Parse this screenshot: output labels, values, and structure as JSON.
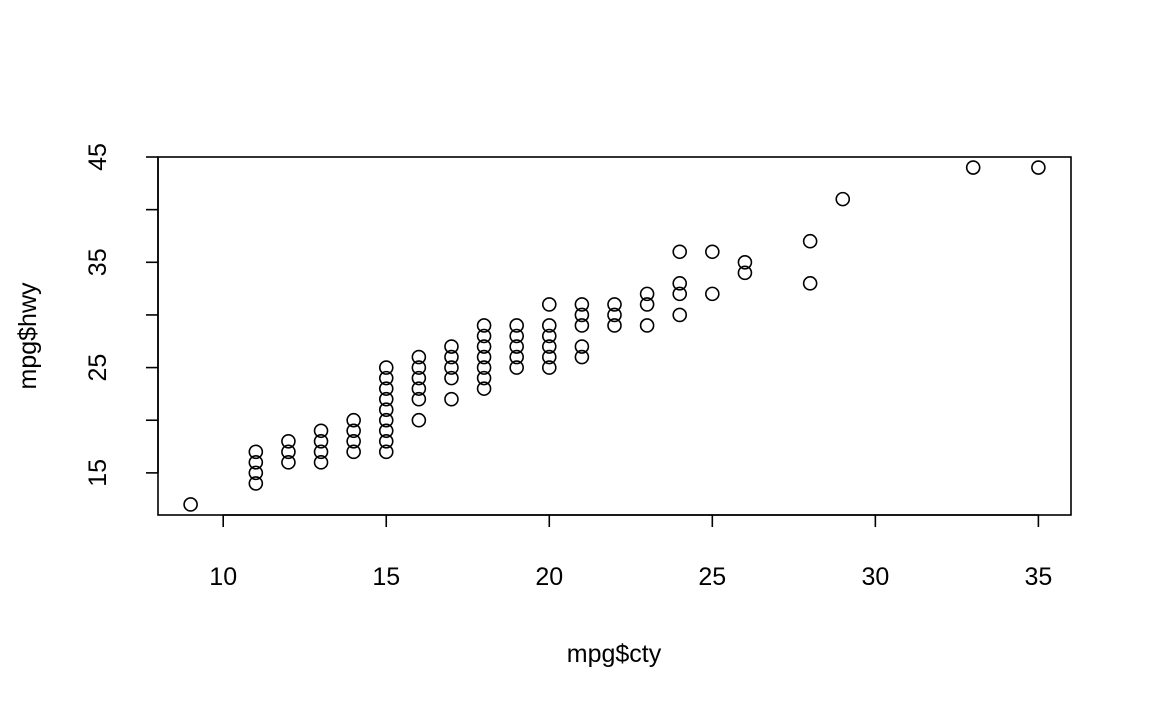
{
  "chart_data": {
    "type": "scatter",
    "title": "",
    "xlabel": "mpg$cty",
    "ylabel": "mpg$hwy",
    "xlim": [
      8,
      36
    ],
    "ylim": [
      11,
      45
    ],
    "x_ticks": [
      10,
      15,
      20,
      25,
      30,
      35
    ],
    "y_ticks": [
      15,
      20,
      25,
      30,
      35,
      40,
      45
    ],
    "y_tick_labels": [
      "15",
      "",
      "25",
      "",
      "35",
      "",
      "45"
    ],
    "grid": false,
    "legend": "none",
    "marker": "open-circle",
    "color": "#000000",
    "points": [
      [
        9,
        12
      ],
      [
        11,
        14
      ],
      [
        11,
        15
      ],
      [
        11,
        16
      ],
      [
        11,
        17
      ],
      [
        12,
        16
      ],
      [
        12,
        17
      ],
      [
        12,
        18
      ],
      [
        13,
        16
      ],
      [
        13,
        17
      ],
      [
        13,
        18
      ],
      [
        13,
        19
      ],
      [
        14,
        17
      ],
      [
        14,
        18
      ],
      [
        14,
        19
      ],
      [
        14,
        20
      ],
      [
        15,
        17
      ],
      [
        15,
        18
      ],
      [
        15,
        19
      ],
      [
        15,
        20
      ],
      [
        15,
        21
      ],
      [
        15,
        22
      ],
      [
        15,
        23
      ],
      [
        15,
        24
      ],
      [
        15,
        25
      ],
      [
        16,
        20
      ],
      [
        16,
        22
      ],
      [
        16,
        23
      ],
      [
        16,
        24
      ],
      [
        16,
        25
      ],
      [
        16,
        26
      ],
      [
        17,
        22
      ],
      [
        17,
        24
      ],
      [
        17,
        25
      ],
      [
        17,
        26
      ],
      [
        17,
        27
      ],
      [
        18,
        23
      ],
      [
        18,
        24
      ],
      [
        18,
        25
      ],
      [
        18,
        26
      ],
      [
        18,
        27
      ],
      [
        18,
        28
      ],
      [
        18,
        29
      ],
      [
        19,
        25
      ],
      [
        19,
        26
      ],
      [
        19,
        27
      ],
      [
        19,
        28
      ],
      [
        19,
        29
      ],
      [
        20,
        25
      ],
      [
        20,
        26
      ],
      [
        20,
        27
      ],
      [
        20,
        28
      ],
      [
        20,
        29
      ],
      [
        20,
        31
      ],
      [
        21,
        26
      ],
      [
        21,
        27
      ],
      [
        21,
        29
      ],
      [
        21,
        30
      ],
      [
        21,
        31
      ],
      [
        22,
        29
      ],
      [
        22,
        30
      ],
      [
        22,
        31
      ],
      [
        23,
        29
      ],
      [
        23,
        31
      ],
      [
        23,
        32
      ],
      [
        24,
        30
      ],
      [
        24,
        32
      ],
      [
        24,
        33
      ],
      [
        24,
        36
      ],
      [
        25,
        32
      ],
      [
        25,
        36
      ],
      [
        26,
        34
      ],
      [
        26,
        35
      ],
      [
        28,
        33
      ],
      [
        28,
        37
      ],
      [
        29,
        41
      ],
      [
        33,
        44
      ],
      [
        35,
        44
      ]
    ]
  }
}
